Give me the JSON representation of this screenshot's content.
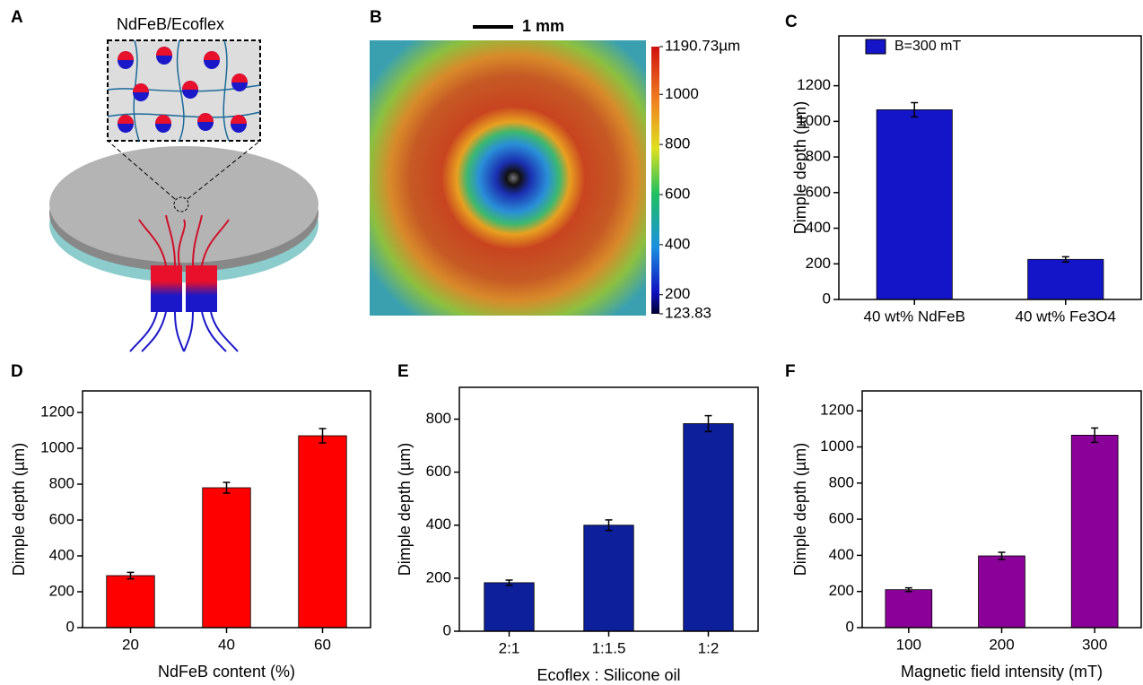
{
  "diagram": {
    "panel": "A",
    "label": "NdFeB/Ecoflex"
  },
  "chart_data": [
    {
      "type": "colorbar",
      "panel": "B",
      "scale_label": "1 mm",
      "clim": [
        123.83,
        1190.73
      ],
      "ticks": [
        {
          "value": 1190.73,
          "label": "1190.73µm"
        },
        1000,
        800,
        600,
        400,
        200,
        123.83
      ]
    },
    {
      "type": "bar",
      "panel": "C",
      "ylabel": "Dimple depth (µm)",
      "categories": [
        "40 wt% NdFeB",
        "40 wt% Fe3O4"
      ],
      "series": [
        {
          "name": "B=300 mT",
          "color": "#1414c8",
          "values": [
            1065,
            225
          ],
          "errors": [
            40,
            15
          ]
        }
      ],
      "legend": "upper left",
      "ylim": [
        0,
        1480
      ],
      "yticks": [
        0,
        200,
        400,
        600,
        800,
        1000,
        1200
      ]
    },
    {
      "type": "bar",
      "panel": "D",
      "ylabel": "Dimple depth (µm)",
      "xlabel": "NdFeB content (%)",
      "categories": [
        "20",
        "40",
        "60"
      ],
      "color": "#ff0000",
      "values": [
        290,
        780,
        1070
      ],
      "errors": [
        18,
        30,
        40
      ],
      "ylim": [
        0,
        1320
      ],
      "yticks": [
        0,
        200,
        400,
        600,
        800,
        1000,
        1200
      ]
    },
    {
      "type": "bar",
      "panel": "E",
      "ylabel": "Dimple depth (µm)",
      "xlabel": "Ecoflex : Silicone oil",
      "categories": [
        "2:1",
        "1:1.5",
        "1:2"
      ],
      "color": "#0d1f9a",
      "values": [
        183,
        400,
        783
      ],
      "errors": [
        10,
        20,
        30
      ],
      "ylim": [
        0,
        920
      ],
      "yticks": [
        0,
        200,
        400,
        600,
        800
      ]
    },
    {
      "type": "bar",
      "panel": "F",
      "ylabel": "Dimple depth (µm)",
      "xlabel": "Magnetic field intensity (mT)",
      "categories": [
        "100",
        "200",
        "300"
      ],
      "color": "#8b0099",
      "values": [
        210,
        397,
        1065
      ],
      "errors": [
        10,
        20,
        40
      ],
      "ylim": [
        0,
        1310
      ],
      "yticks": [
        0,
        200,
        400,
        600,
        800,
        1000,
        1200
      ]
    }
  ]
}
